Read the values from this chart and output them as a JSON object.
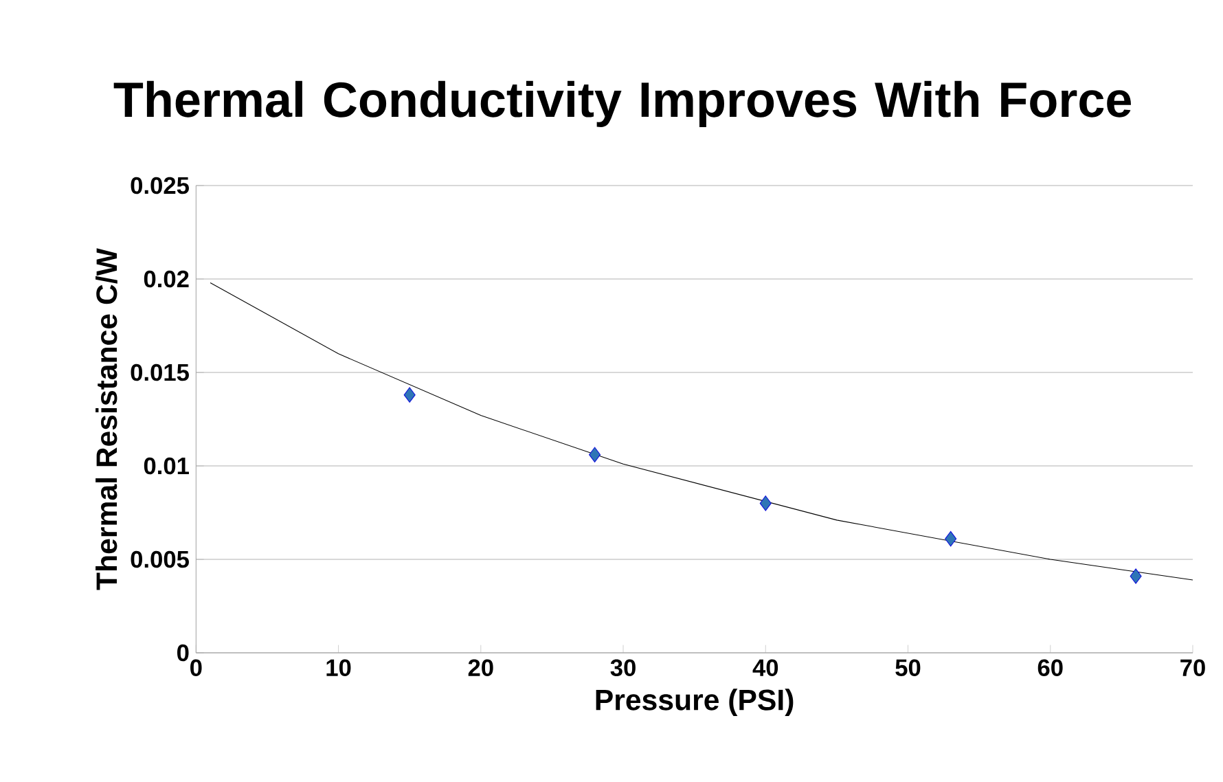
{
  "chart_data": {
    "type": "scatter",
    "title": "Thermal Conductivity Improves With Force",
    "xlabel": "Pressure (PSI)",
    "ylabel": "Thermal Resistance C/W",
    "xlim": [
      0,
      70
    ],
    "xticks": [
      0,
      10,
      20,
      30,
      40,
      50,
      60,
      70
    ],
    "ylim": [
      0,
      0.025
    ],
    "yticks": [
      0,
      0.005,
      0.01,
      0.015,
      0.02,
      0.025
    ],
    "grid": "y",
    "series": [
      {
        "color": "#2e75b6",
        "marker": "diamond",
        "x": [
          15,
          28,
          40,
          53,
          66
        ],
        "values": [
          0.0138,
          0.0106,
          0.008,
          0.0061,
          0.0041
        ]
      },
      {
        "type": "line",
        "color": "#000000",
        "marker": "none",
        "line_style": "solid",
        "x": [
          1,
          10,
          20,
          30,
          45,
          60,
          70
        ],
        "values": [
          0.0198,
          0.016,
          0.0127,
          0.0101,
          0.0071,
          0.005,
          0.0039
        ]
      }
    ]
  }
}
